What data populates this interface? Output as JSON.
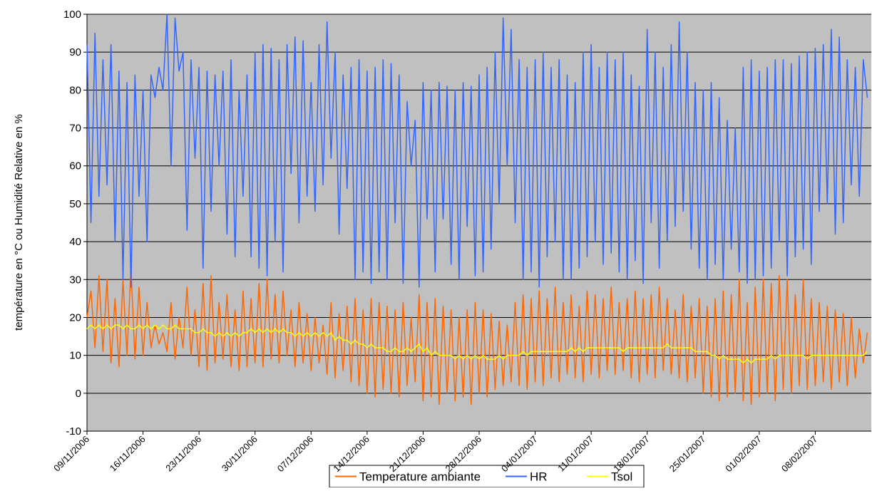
{
  "chart_data": {
    "type": "line",
    "y_label": "température en °C ou Humidité Relative en %",
    "ylim": [
      -10,
      100
    ],
    "yticks": [
      -10,
      0,
      10,
      20,
      30,
      40,
      50,
      60,
      70,
      80,
      90,
      100
    ],
    "grid": true,
    "xlim": [
      "09/11/2006 00:00",
      "15/02/2007 00:00"
    ],
    "xticks": [
      "09/11/2006",
      "16/11/2006",
      "23/11/2006",
      "30/11/2006",
      "07/12/2006",
      "14/12/2006",
      "21/12/2006",
      "28/12/2006",
      "04/01/2007",
      "11/01/2007",
      "18/01/2007",
      "25/01/2007",
      "01/02/2007",
      "08/02/2007"
    ],
    "legend": "bottom",
    "x": [
      "09/11/2006 00:00",
      "09/11/2006 12:00",
      "10/11/2006 00:00",
      "10/11/2006 12:00",
      "11/11/2006 00:00",
      "11/11/2006 12:00",
      "12/11/2006 00:00",
      "12/11/2006 12:00",
      "13/11/2006 00:00",
      "13/11/2006 12:00",
      "14/11/2006 00:00",
      "14/11/2006 12:00",
      "15/11/2006 00:00",
      "15/11/2006 12:00",
      "16/11/2006 00:00",
      "16/11/2006 12:00",
      "17/11/2006 00:00",
      "17/11/2006 12:00",
      "18/11/2006 00:00",
      "18/11/2006 12:00",
      "19/11/2006 00:00",
      "19/11/2006 12:00",
      "20/11/2006 00:00",
      "20/11/2006 12:00",
      "21/11/2006 00:00",
      "21/11/2006 12:00",
      "22/11/2006 00:00",
      "22/11/2006 12:00",
      "23/11/2006 00:00",
      "23/11/2006 12:00",
      "24/11/2006 00:00",
      "24/11/2006 12:00",
      "25/11/2006 00:00",
      "25/11/2006 12:00",
      "26/11/2006 00:00",
      "26/11/2006 12:00",
      "27/11/2006 00:00",
      "27/11/2006 12:00",
      "28/11/2006 00:00",
      "28/11/2006 12:00",
      "29/11/2006 00:00",
      "29/11/2006 12:00",
      "30/11/2006 00:00",
      "30/11/2006 12:00",
      "01/12/2006 00:00",
      "01/12/2006 12:00",
      "02/12/2006 00:00",
      "02/12/2006 12:00",
      "03/12/2006 00:00",
      "03/12/2006 12:00",
      "04/12/2006 00:00",
      "04/12/2006 12:00",
      "05/12/2006 00:00",
      "05/12/2006 12:00",
      "06/12/2006 00:00",
      "06/12/2006 12:00",
      "07/12/2006 00:00",
      "07/12/2006 12:00",
      "08/12/2006 00:00",
      "08/12/2006 12:00",
      "09/12/2006 00:00",
      "09/12/2006 12:00",
      "10/12/2006 00:00",
      "10/12/2006 12:00",
      "11/12/2006 00:00",
      "11/12/2006 12:00",
      "12/12/2006 00:00",
      "12/12/2006 12:00",
      "13/12/2006 00:00",
      "13/12/2006 12:00",
      "14/12/2006 00:00",
      "14/12/2006 12:00",
      "15/12/2006 00:00",
      "15/12/2006 12:00",
      "16/12/2006 00:00",
      "16/12/2006 12:00",
      "17/12/2006 00:00",
      "17/12/2006 12:00",
      "18/12/2006 00:00",
      "18/12/2006 12:00",
      "19/12/2006 00:00",
      "19/12/2006 12:00",
      "20/12/2006 00:00",
      "20/12/2006 12:00",
      "21/12/2006 00:00",
      "21/12/2006 12:00",
      "22/12/2006 00:00",
      "22/12/2006 12:00",
      "23/12/2006 00:00",
      "23/12/2006 12:00",
      "24/12/2006 00:00",
      "24/12/2006 12:00",
      "25/12/2006 00:00",
      "25/12/2006 12:00",
      "26/12/2006 00:00",
      "26/12/2006 12:00",
      "27/12/2006 00:00",
      "27/12/2006 12:00",
      "28/12/2006 00:00",
      "28/12/2006 12:00",
      "29/12/2006 00:00",
      "29/12/2006 12:00",
      "30/12/2006 00:00",
      "30/12/2006 12:00",
      "31/12/2006 00:00",
      "31/12/2006 12:00",
      "01/01/2007 00:00",
      "01/01/2007 12:00",
      "02/01/2007 00:00",
      "02/01/2007 12:00",
      "03/01/2007 00:00",
      "03/01/2007 12:00",
      "04/01/2007 00:00",
      "04/01/2007 12:00",
      "05/01/2007 00:00",
      "05/01/2007 12:00",
      "06/01/2007 00:00",
      "06/01/2007 12:00",
      "07/01/2007 00:00",
      "07/01/2007 12:00",
      "08/01/2007 00:00",
      "08/01/2007 12:00",
      "09/01/2007 00:00",
      "09/01/2007 12:00",
      "10/01/2007 00:00",
      "10/01/2007 12:00",
      "11/01/2007 00:00",
      "11/01/2007 12:00",
      "12/01/2007 00:00",
      "12/01/2007 12:00",
      "13/01/2007 00:00",
      "13/01/2007 12:00",
      "14/01/2007 00:00",
      "14/01/2007 12:00",
      "15/01/2007 00:00",
      "15/01/2007 12:00",
      "16/01/2007 00:00",
      "16/01/2007 12:00",
      "17/01/2007 00:00",
      "17/01/2007 12:00",
      "18/01/2007 00:00",
      "18/01/2007 12:00",
      "19/01/2007 00:00",
      "19/01/2007 12:00",
      "20/01/2007 00:00",
      "20/01/2007 12:00",
      "21/01/2007 00:00",
      "21/01/2007 12:00",
      "22/01/2007 00:00",
      "22/01/2007 12:00",
      "23/01/2007 00:00",
      "23/01/2007 12:00",
      "24/01/2007 00:00",
      "24/01/2007 12:00",
      "25/01/2007 00:00",
      "25/01/2007 12:00",
      "26/01/2007 00:00",
      "26/01/2007 12:00",
      "27/01/2007 00:00",
      "27/01/2007 12:00",
      "28/01/2007 00:00",
      "28/01/2007 12:00",
      "29/01/2007 00:00",
      "29/01/2007 12:00",
      "30/01/2007 00:00",
      "30/01/2007 12:00",
      "31/01/2007 00:00",
      "31/01/2007 12:00",
      "01/02/2007 00:00",
      "01/02/2007 12:00",
      "02/02/2007 00:00",
      "02/02/2007 12:00",
      "03/02/2007 00:00",
      "03/02/2007 12:00",
      "04/02/2007 00:00",
      "04/02/2007 12:00",
      "05/02/2007 00:00",
      "05/02/2007 12:00",
      "06/02/2007 00:00",
      "06/02/2007 12:00",
      "07/02/2007 00:00",
      "07/02/2007 12:00",
      "08/02/2007 00:00",
      "08/02/2007 12:00",
      "09/02/2007 00:00",
      "09/02/2007 12:00",
      "10/02/2007 00:00",
      "10/02/2007 12:00",
      "11/02/2007 00:00",
      "11/02/2007 12:00",
      "12/02/2007 00:00",
      "12/02/2007 12:00",
      "13/02/2007 00:00",
      "13/02/2007 12:00",
      "14/02/2007 00:00",
      "14/02/2007 12:00"
    ],
    "series": [
      {
        "name": "Temperature ambiante",
        "color": "#ff6600",
        "values": [
          20,
          27,
          12,
          31,
          11,
          30,
          8,
          25,
          7,
          30,
          10,
          33,
          9,
          28,
          10,
          24,
          12,
          18,
          13,
          16,
          11,
          24,
          9,
          20,
          12,
          28,
          10,
          22,
          7,
          29,
          6,
          31,
          8,
          24,
          9,
          26,
          7,
          22,
          6,
          27,
          7,
          25,
          8,
          29,
          7,
          30,
          9,
          26,
          8,
          27,
          10,
          22,
          7,
          24,
          8,
          21,
          6,
          20,
          8,
          18,
          5,
          24,
          4,
          21,
          6,
          23,
          3,
          25,
          2,
          22,
          0,
          25,
          -1,
          24,
          1,
          23,
          0,
          22,
          -1,
          24,
          2,
          20,
          3,
          26,
          -2,
          24,
          -1,
          25,
          -3,
          23,
          0,
          22,
          -2,
          20,
          -1,
          22,
          -3,
          24,
          0,
          22,
          -1,
          21,
          1,
          19,
          2,
          18,
          3,
          24,
          2,
          26,
          1,
          25,
          3,
          27,
          2,
          25,
          4,
          28,
          3,
          24,
          5,
          26,
          4,
          23,
          3,
          27,
          5,
          26,
          4,
          25,
          6,
          28,
          5,
          24,
          6,
          25,
          4,
          27,
          3,
          25,
          5,
          26,
          4,
          28,
          6,
          25,
          5,
          22,
          4,
          26,
          3,
          23,
          4,
          25,
          0,
          23,
          -1,
          25,
          -2,
          27,
          -1,
          26,
          0,
          30,
          -2,
          24,
          -3,
          28,
          -1,
          30,
          0,
          29,
          -2,
          31,
          1,
          30,
          0,
          26,
          2,
          30,
          1,
          25,
          2,
          24,
          3,
          23,
          1,
          22,
          3,
          21,
          2,
          20,
          4,
          17,
          8,
          16
        ]
      },
      {
        "name": "HR",
        "color": "#3366ff",
        "values": [
          92,
          45,
          95,
          52,
          88,
          55,
          92,
          40,
          85,
          30,
          82,
          28,
          84,
          52,
          80,
          40,
          84,
          78,
          86,
          80,
          100,
          60,
          99,
          85,
          90,
          43,
          88,
          62,
          86,
          33,
          85,
          48,
          84,
          60,
          85,
          42,
          88,
          36,
          80,
          52,
          84,
          36,
          90,
          33,
          92,
          31,
          91,
          40,
          88,
          32,
          92,
          58,
          94,
          45,
          93,
          52,
          82,
          48,
          92,
          55,
          98,
          62,
          90,
          42,
          84,
          54,
          86,
          30,
          88,
          32,
          85,
          29,
          86,
          32,
          88,
          30,
          87,
          45,
          84,
          29,
          77,
          60,
          72,
          28,
          82,
          46,
          80,
          32,
          82,
          46,
          81,
          34,
          80,
          30,
          82,
          44,
          81,
          31,
          84,
          32,
          86,
          38,
          90,
          50,
          99,
          60,
          96,
          45,
          88,
          30,
          86,
          32,
          88,
          28,
          90,
          36,
          86,
          40,
          88,
          30,
          84,
          30,
          82,
          33,
          90,
          36,
          92,
          40,
          86,
          34,
          90,
          37,
          88,
          32,
          90,
          30,
          84,
          35,
          81,
          29,
          96,
          45,
          90,
          33,
          86,
          40,
          92,
          44,
          98,
          48,
          90,
          38,
          82,
          33,
          80,
          30,
          82,
          34,
          78,
          30,
          72,
          38,
          70,
          32,
          86,
          29,
          88,
          30,
          85,
          31,
          86,
          33,
          88,
          40,
          88,
          31,
          87,
          36,
          89,
          38,
          90,
          34,
          91,
          48,
          92,
          50,
          96,
          42,
          94,
          45,
          88,
          55,
          86,
          52,
          88,
          78
        ]
      },
      {
        "name": "Tsol",
        "color": "#ffff00",
        "values": [
          17,
          18,
          17,
          18,
          17,
          18,
          17,
          18,
          18,
          17,
          18,
          17,
          17,
          18,
          17,
          18,
          17,
          18,
          17,
          18,
          17,
          17,
          18,
          17,
          17,
          17,
          17,
          16,
          16,
          17,
          16,
          16,
          15,
          16,
          15,
          16,
          15,
          16,
          15,
          16,
          16,
          17,
          16,
          17,
          16,
          17,
          16,
          17,
          16,
          17,
          16,
          16,
          15,
          16,
          15,
          16,
          15,
          16,
          15,
          16,
          15,
          16,
          14,
          15,
          14,
          14,
          13,
          14,
          13,
          13,
          12,
          13,
          12,
          12,
          12,
          11,
          11,
          12,
          11,
          11,
          12,
          11,
          12,
          13,
          11,
          12,
          10,
          11,
          10,
          10,
          10,
          10,
          9,
          10,
          9,
          10,
          9,
          10,
          9,
          10,
          9,
          9,
          9,
          10,
          9,
          10,
          10,
          10,
          10,
          11,
          10,
          11,
          11,
          11,
          11,
          11,
          11,
          11,
          11,
          11,
          11,
          12,
          11,
          12,
          11,
          12,
          12,
          12,
          12,
          12,
          12,
          12,
          12,
          12,
          11,
          12,
          12,
          12,
          12,
          12,
          12,
          12,
          12,
          12,
          12,
          13,
          12,
          12,
          12,
          12,
          12,
          12,
          11,
          11,
          11,
          11,
          10,
          10,
          9,
          10,
          9,
          9,
          9,
          9,
          8,
          9,
          8,
          9,
          9,
          9,
          9,
          10,
          9,
          10,
          10,
          10,
          10,
          10,
          10,
          10,
          9,
          10,
          10,
          10,
          10,
          10,
          10,
          10,
          10,
          10,
          10,
          10,
          10,
          10,
          10,
          11
        ]
      }
    ]
  }
}
